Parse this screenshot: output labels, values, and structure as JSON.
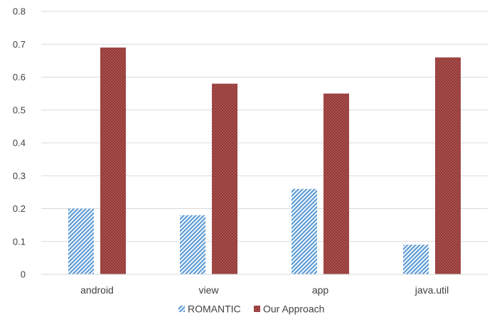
{
  "chart_data": {
    "type": "bar",
    "title": "",
    "xlabel": "",
    "ylabel": "",
    "categories": [
      "android",
      "view",
      "app",
      "java.util"
    ],
    "series": [
      {
        "name": "ROMANTIC",
        "values": [
          0.2,
          0.18,
          0.26,
          0.09
        ],
        "color": "#5b9bd5",
        "pattern": "diagonal-hatch"
      },
      {
        "name": "Our Approach",
        "values": [
          0.69,
          0.58,
          0.55,
          0.66
        ],
        "color": "#943634",
        "pattern": "dots"
      }
    ],
    "ylim": [
      0,
      0.8
    ],
    "yticks": [
      "0",
      "0.1",
      "0.2",
      "0.3",
      "0.4",
      "0.5",
      "0.6",
      "0.7",
      "0.8"
    ],
    "grid": true,
    "legend_position": "bottom-center"
  }
}
